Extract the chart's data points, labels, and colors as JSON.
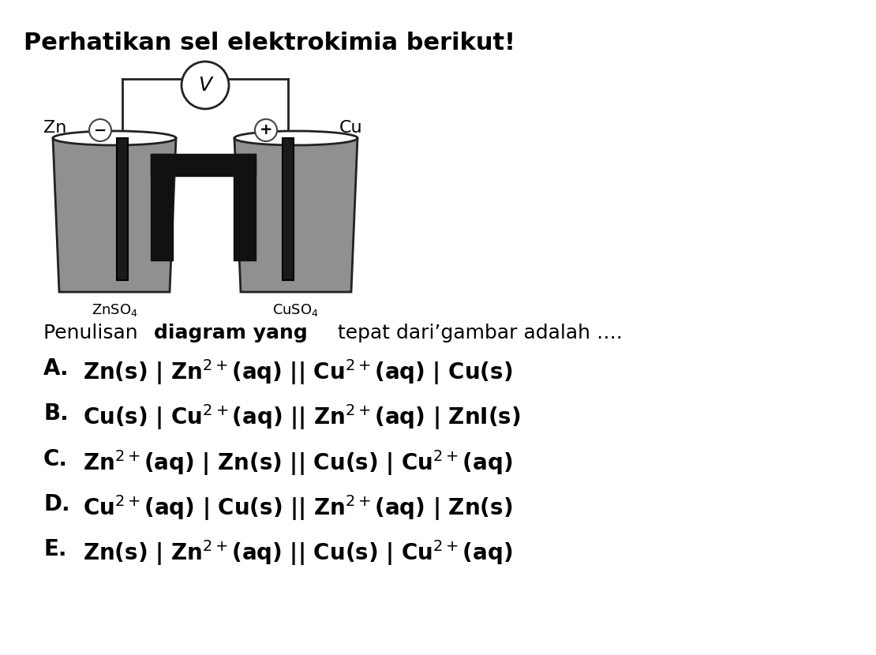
{
  "title": "Perhatikan sel elektrokimia berikut!",
  "subtitle": "Penulisan diagram yang tepat dari gambar adalah ....",
  "subtitle_normal": "Penulisan ",
  "subtitle_bold": "diagram yang",
  "subtitle_normal2": " tepat dari’gambar adalah ....",
  "options": [
    {
      "label": "A.",
      "text": "Zn(s) | Zn$^{2+}$(aq) || Cu$^{2+}$(aq) | Cu(s)"
    },
    {
      "label": "B.",
      "text": "Cu(s) | Cu$^{2+}$(aq) || Zn$^{2+}$(aq) | ZnI(s)"
    },
    {
      "label": "C.",
      "text": "Zn$^{2+}$(aq) | Zn(s) || Cu(s) | Cu$^{2+}$(aq)"
    },
    {
      "label": "D.",
      "text": "Cu$^{2+}$(aq) | Cu(s) || Zn$^{2+}$(aq) | Zn(s)"
    },
    {
      "label": "E.",
      "text": "Zn(s) | Zn$^{2+}$(aq) || Cu(ṡ) | Cu$^{2+}$(aq)"
    }
  ],
  "background_color": "#ffffff",
  "text_color": "#000000",
  "title_fontsize": 22,
  "subtitle_fontsize": 18,
  "option_fontsize": 20,
  "diagram_left_label": "Zn",
  "diagram_right_label": "Cu",
  "diagram_left_solution": "ZnSO$_4$",
  "diagram_right_solution": "CuSO$_4$",
  "diagram_minus_label": "−",
  "diagram_plus_label": "+",
  "voltmeter_label": "V"
}
